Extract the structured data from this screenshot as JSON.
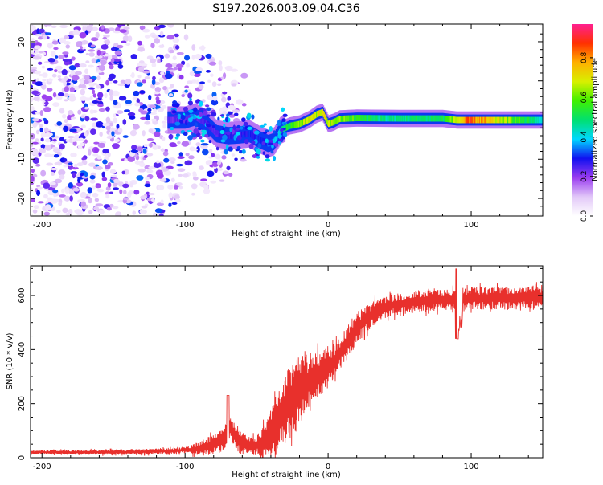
{
  "title": "S197.2026.003.09.04.C36",
  "chart_data": [
    {
      "type": "heatmap",
      "xlabel": "Height of straight line (km)",
      "ylabel": "Frequency (Hz)",
      "xlim": [
        -208,
        150
      ],
      "ylim": [
        -24.5,
        24.5
      ],
      "xticks": [
        -200,
        -100,
        0,
        100
      ],
      "xtick_labels": [
        "-200",
        "-100",
        "0",
        "100"
      ],
      "yticks": [
        -20,
        -10,
        0,
        10,
        20
      ],
      "ytick_labels": [
        "-20",
        "-10",
        "0",
        "10",
        "20"
      ],
      "colorbar": {
        "label": "Normalized spectral amplitude",
        "range": [
          0,
          0.97
        ],
        "ticks": [
          0,
          0.2,
          0.4,
          0.6,
          0.8
        ],
        "tick_labels": [
          "0.0",
          "0.2",
          "0.4",
          "0.6",
          "0.8"
        ],
        "colors": [
          "#ffffff",
          "#e2c8f8",
          "#9a3cf0",
          "#1010f0",
          "#00d8ff",
          "#00e070",
          "#40f000",
          "#d8f000",
          "#ffb000",
          "#ff3000",
          "#ff2090"
        ]
      },
      "ridge_frequency": [
        {
          "x": -110,
          "y": 0
        },
        {
          "x": -100,
          "y": 0
        },
        {
          "x": -93,
          "y": 0.8
        },
        {
          "x": -85,
          "y": -1
        },
        {
          "x": -78,
          "y": -3.5
        },
        {
          "x": -70,
          "y": -4
        },
        {
          "x": -62,
          "y": -3.8
        },
        {
          "x": -55,
          "y": -3.5
        },
        {
          "x": -48,
          "y": -5
        },
        {
          "x": -42,
          "y": -6
        },
        {
          "x": -38,
          "y": -5.5
        },
        {
          "x": -33,
          "y": -2.5
        },
        {
          "x": -27,
          "y": -1.5
        },
        {
          "x": -20,
          "y": -1
        },
        {
          "x": -13,
          "y": 0.2
        },
        {
          "x": -8,
          "y": 1.5
        },
        {
          "x": -4,
          "y": 2
        },
        {
          "x": 0,
          "y": -1
        },
        {
          "x": 4,
          "y": -0.5
        },
        {
          "x": 8,
          "y": 0.3
        },
        {
          "x": 20,
          "y": 0.5
        },
        {
          "x": 50,
          "y": 0.4
        },
        {
          "x": 80,
          "y": 0.4
        },
        {
          "x": 90,
          "y": 0
        },
        {
          "x": 120,
          "y": 0
        },
        {
          "x": 150,
          "y": 0
        }
      ],
      "ridge_amplitude": [
        {
          "x": -110,
          "y": 0.25
        },
        {
          "x": -60,
          "y": 0.3
        },
        {
          "x": -40,
          "y": 0.35
        },
        {
          "x": -20,
          "y": 0.7
        },
        {
          "x": -5,
          "y": 0.75
        },
        {
          "x": 10,
          "y": 0.65
        },
        {
          "x": 40,
          "y": 0.5
        },
        {
          "x": 80,
          "y": 0.55
        },
        {
          "x": 100,
          "y": 0.9
        },
        {
          "x": 150,
          "y": 0.45
        }
      ]
    },
    {
      "type": "line",
      "xlabel": "Height of straight line (km)",
      "ylabel": "SNR (10 * v/v)",
      "xlim": [
        -208,
        150
      ],
      "ylim": [
        0,
        710
      ],
      "xticks": [
        -200,
        -100,
        0,
        100
      ],
      "xtick_labels": [
        "-200",
        "-100",
        "0",
        "100"
      ],
      "yticks": [
        0,
        200,
        400,
        600
      ],
      "ytick_labels": [
        "0",
        "200",
        "400",
        "600"
      ],
      "color": "#e8302c",
      "trend": [
        {
          "x": -208,
          "y": 20
        },
        {
          "x": -180,
          "y": 20
        },
        {
          "x": -150,
          "y": 20
        },
        {
          "x": -130,
          "y": 22
        },
        {
          "x": -110,
          "y": 25
        },
        {
          "x": -95,
          "y": 30
        },
        {
          "x": -85,
          "y": 40
        },
        {
          "x": -75,
          "y": 60
        },
        {
          "x": -68,
          "y": 110
        },
        {
          "x": -62,
          "y": 60
        },
        {
          "x": -55,
          "y": 40
        },
        {
          "x": -48,
          "y": 50
        },
        {
          "x": -42,
          "y": 80
        },
        {
          "x": -35,
          "y": 140
        },
        {
          "x": -28,
          "y": 200
        },
        {
          "x": -20,
          "y": 250
        },
        {
          "x": -12,
          "y": 290
        },
        {
          "x": -5,
          "y": 310
        },
        {
          "x": 0,
          "y": 330
        },
        {
          "x": 5,
          "y": 360
        },
        {
          "x": 10,
          "y": 400
        },
        {
          "x": 15,
          "y": 440
        },
        {
          "x": 20,
          "y": 480
        },
        {
          "x": 28,
          "y": 520
        },
        {
          "x": 35,
          "y": 545
        },
        {
          "x": 45,
          "y": 565
        },
        {
          "x": 60,
          "y": 575
        },
        {
          "x": 80,
          "y": 585
        },
        {
          "x": 100,
          "y": 590
        },
        {
          "x": 120,
          "y": 590
        },
        {
          "x": 150,
          "y": 595
        }
      ],
      "fluctuation_amplitude": [
        {
          "x": -208,
          "y": 8
        },
        {
          "x": -100,
          "y": 12
        },
        {
          "x": -80,
          "y": 40
        },
        {
          "x": -65,
          "y": 50
        },
        {
          "x": -50,
          "y": 35
        },
        {
          "x": -40,
          "y": 90
        },
        {
          "x": -25,
          "y": 150
        },
        {
          "x": -10,
          "y": 90
        },
        {
          "x": 5,
          "y": 70
        },
        {
          "x": 20,
          "y": 60
        },
        {
          "x": 40,
          "y": 40
        },
        {
          "x": 80,
          "y": 40
        },
        {
          "x": 150,
          "y": 45
        }
      ],
      "annotations": [
        {
          "x": -70,
          "y": 230,
          "text": ""
        },
        {
          "x": 90,
          "y": 700,
          "text": ""
        },
        {
          "x": 90,
          "y": 430,
          "text": ""
        }
      ]
    }
  ]
}
